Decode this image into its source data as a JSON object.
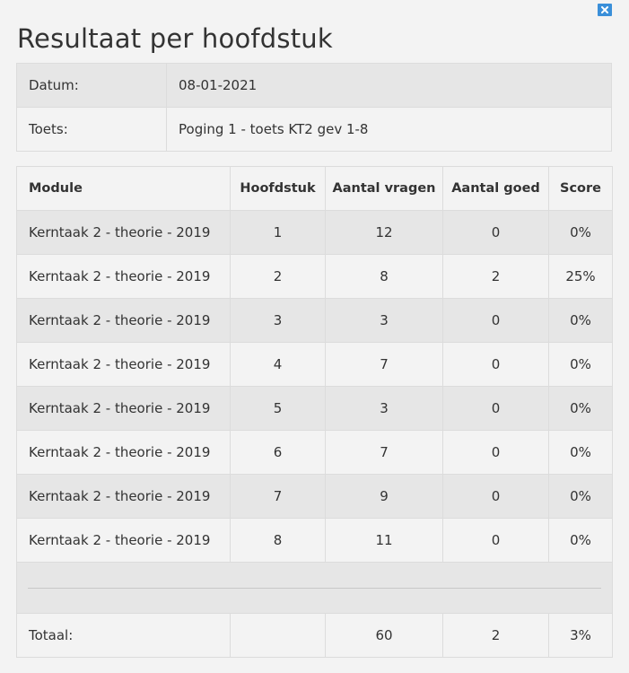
{
  "dialog": {
    "title": "Resultaat per hoofdstuk",
    "close_icon": "close-icon"
  },
  "meta": {
    "date_label": "Datum:",
    "date_value": "08-01-2021",
    "test_label": "Toets:",
    "test_value": "Poging 1 - toets KT2 gev 1-8"
  },
  "results": {
    "headers": {
      "module": "Module",
      "chapter": "Hoofdstuk",
      "questions": "Aantal vragen",
      "correct": "Aantal goed",
      "score": "Score"
    },
    "rows": [
      {
        "module": "Kerntaak 2 - theorie - 2019",
        "chapter": "1",
        "questions": "12",
        "correct": "0",
        "score": "0%"
      },
      {
        "module": "Kerntaak 2 - theorie - 2019",
        "chapter": "2",
        "questions": "8",
        "correct": "2",
        "score": "25%"
      },
      {
        "module": "Kerntaak 2 - theorie - 2019",
        "chapter": "3",
        "questions": "3",
        "correct": "0",
        "score": "0%"
      },
      {
        "module": "Kerntaak 2 - theorie - 2019",
        "chapter": "4",
        "questions": "7",
        "correct": "0",
        "score": "0%"
      },
      {
        "module": "Kerntaak 2 - theorie - 2019",
        "chapter": "5",
        "questions": "3",
        "correct": "0",
        "score": "0%"
      },
      {
        "module": "Kerntaak 2 - theorie - 2019",
        "chapter": "6",
        "questions": "7",
        "correct": "0",
        "score": "0%"
      },
      {
        "module": "Kerntaak 2 - theorie - 2019",
        "chapter": "7",
        "questions": "9",
        "correct": "0",
        "score": "0%"
      },
      {
        "module": "Kerntaak 2 - theorie - 2019",
        "chapter": "8",
        "questions": "11",
        "correct": "0",
        "score": "0%"
      }
    ],
    "total": {
      "label": "Totaal:",
      "chapter": "",
      "questions": "60",
      "correct": "2",
      "score": "3%"
    }
  },
  "colors": {
    "row_grey": "#e6e6e6",
    "row_light": "#f3f3f3",
    "close_button": "#3a8fd9",
    "border": "#dcdcdc"
  }
}
